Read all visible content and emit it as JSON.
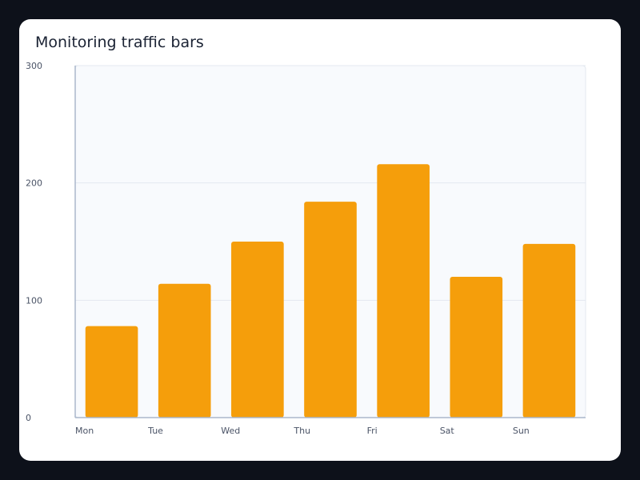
{
  "chart_data": {
    "type": "bar",
    "title": "Monitoring traffic bars",
    "categories": [
      "Mon",
      "Tue",
      "Wed",
      "Thu",
      "Fri",
      "Sat",
      "Sun"
    ],
    "values": [
      78,
      114,
      150,
      184,
      216,
      120,
      148
    ],
    "ylim": [
      0,
      300
    ],
    "yticks": [
      "0",
      "100",
      "200",
      "300"
    ],
    "ytick_values": [
      0,
      100,
      200,
      300
    ],
    "xlabel": "",
    "ylabel": "",
    "grid": true,
    "colors": {
      "bar": "#f59e0b",
      "plot_background": "#f8fafd",
      "gridline": "#e3e8f0",
      "axis": "#aab7cc"
    }
  }
}
